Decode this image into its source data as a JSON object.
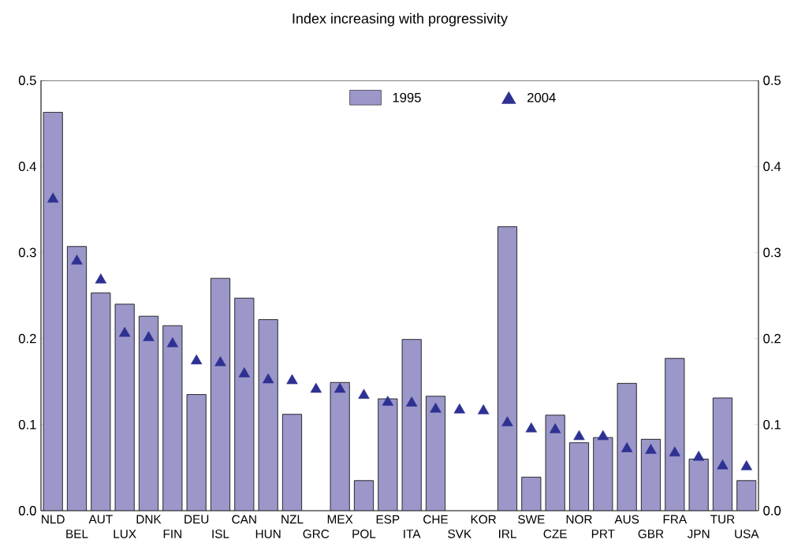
{
  "chart_data": {
    "type": "bar",
    "title": "Index increasing with progressivity",
    "categories": [
      "NLD",
      "BEL",
      "AUT",
      "LUX",
      "DNK",
      "FIN",
      "DEU",
      "ISL",
      "CAN",
      "HUN",
      "NZL",
      "GRC",
      "MEX",
      "POL",
      "ESP",
      "ITA",
      "CHE",
      "SVK",
      "KOR",
      "IRL",
      "SWE",
      "CZE",
      "NOR",
      "PRT",
      "AUS",
      "GBR",
      "FRA",
      "JPN",
      "TUR",
      "USA"
    ],
    "series": [
      {
        "name": "1995",
        "type": "bar",
        "color": "#9b97c9",
        "values": [
          0.463,
          0.307,
          0.253,
          0.24,
          0.226,
          0.215,
          0.135,
          0.27,
          0.247,
          0.222,
          0.112,
          null,
          0.149,
          0.035,
          0.13,
          0.199,
          0.133,
          null,
          null,
          0.33,
          0.039,
          0.111,
          0.079,
          0.085,
          0.148,
          0.083,
          0.177,
          0.06,
          0.131,
          0.035
        ]
      },
      {
        "name": "2004",
        "type": "scatter",
        "marker": "triangle",
        "color": "#2e3192",
        "values": [
          0.362,
          0.29,
          0.268,
          0.206,
          0.201,
          0.194,
          0.174,
          0.172,
          0.159,
          0.152,
          0.151,
          0.141,
          0.141,
          0.134,
          0.126,
          0.125,
          0.118,
          0.117,
          0.116,
          0.102,
          0.095,
          0.094,
          0.086,
          0.086,
          0.072,
          0.07,
          0.067,
          0.062,
          0.052,
          0.051
        ]
      }
    ],
    "ylim": [
      0,
      0.5
    ],
    "yticks": [
      {
        "value": 0,
        "label": "0.0"
      },
      0.1,
      0.2,
      0.3,
      0.4,
      0.5
    ],
    "y2lim": [
      0,
      0.5
    ],
    "y2ticks": [
      {
        "value": 0,
        "label": "0.0"
      },
      0.1,
      0.2,
      0.3,
      0.4,
      0.5
    ],
    "legend": "top",
    "grid": false
  }
}
